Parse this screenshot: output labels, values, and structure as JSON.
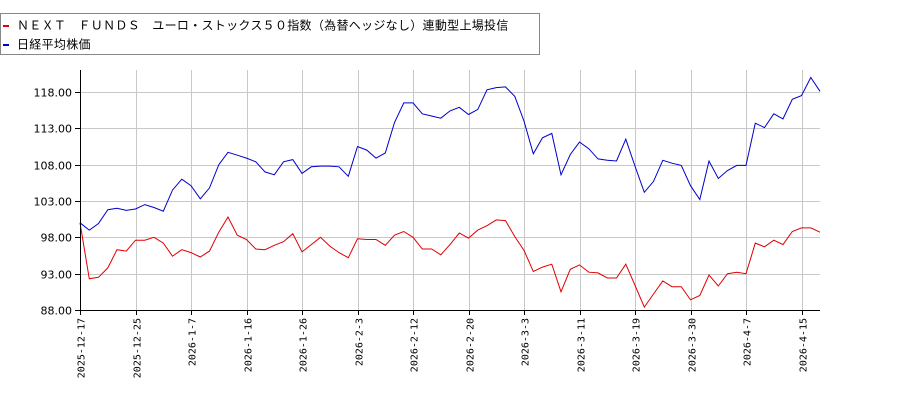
{
  "legend": {
    "items": [
      {
        "label": "ＮＥＸＴ　ＦＵＮＤＳ　ユーロ・ストックス５０指数（為替ヘッジなし）連動型上場投信",
        "color": "#e00000"
      },
      {
        "label": "日経平均株価",
        "color": "#0000cc"
      }
    ]
  },
  "chart_data": {
    "type": "line",
    "title": "",
    "xlabel": "",
    "ylabel": "",
    "ylim": [
      88.0,
      120.0
    ],
    "yticks": [
      "88.00",
      "93.00",
      "98.00",
      "103.00",
      "108.00",
      "113.00",
      "118.00"
    ],
    "ytick_values": [
      88,
      93,
      98,
      103,
      108,
      113,
      118
    ],
    "xtick_labels": [
      "2025-12-17",
      "2025-12-25",
      "2026-1-7",
      "2026-1-16",
      "2026-1-26",
      "2026-2-3",
      "2026-2-12",
      "2026-2-20",
      "2026-3-3",
      "2026-3-11",
      "2026-3-19",
      "2026-3-30",
      "2026-4-7",
      "2026-4-15"
    ],
    "xtick_indices": [
      0,
      6,
      12,
      18,
      24,
      30,
      36,
      42,
      48,
      54,
      60,
      66,
      72,
      78
    ],
    "grid": true,
    "legend_position": "top-left",
    "n_points": 81,
    "series": [
      {
        "name": "ＮＥＸＴ　ＦＵＮＤＳ　ユーロ・ストックス５０指数（為替ヘッジなし）連動型上場投信",
        "color": "#e00000",
        "values": [
          100.0,
          92.3,
          92.5,
          93.8,
          96.3,
          96.1,
          97.6,
          97.6,
          98.0,
          97.2,
          95.4,
          96.3,
          95.9,
          95.3,
          96.1,
          98.7,
          100.8,
          98.3,
          97.7,
          96.4,
          96.3,
          96.9,
          97.4,
          98.5,
          96.0,
          97.0,
          98.0,
          96.8,
          95.9,
          95.2,
          97.8,
          97.7,
          97.7,
          96.9,
          98.3,
          98.8,
          98.0,
          96.4,
          96.4,
          95.6,
          97.0,
          98.6,
          97.9,
          99.0,
          99.6,
          100.4,
          100.3,
          98.1,
          96.2,
          93.3,
          93.9,
          94.3,
          90.5,
          93.6,
          94.2,
          93.2,
          93.1,
          92.4,
          92.4,
          94.3,
          91.4,
          88.4,
          90.2,
          92.0,
          91.2,
          91.2,
          89.4,
          90.0,
          92.8,
          91.3,
          93.0,
          93.2,
          93.0,
          97.2,
          96.7,
          97.6,
          97.0,
          98.8,
          99.3,
          99.3,
          98.7
        ]
      },
      {
        "name": "日経平均株価",
        "color": "#0000cc",
        "values": [
          100.0,
          99.0,
          99.9,
          101.8,
          102.0,
          101.7,
          101.9,
          102.5,
          102.1,
          101.6,
          104.5,
          106.0,
          105.1,
          103.3,
          104.8,
          108.0,
          109.7,
          109.3,
          108.9,
          108.4,
          107.0,
          106.6,
          108.4,
          108.7,
          106.8,
          107.7,
          107.8,
          107.8,
          107.7,
          106.4,
          110.5,
          110.0,
          108.9,
          109.6,
          113.8,
          116.5,
          116.5,
          115.0,
          114.7,
          114.4,
          115.4,
          115.9,
          114.9,
          115.6,
          118.3,
          118.6,
          118.7,
          117.4,
          114.0,
          109.5,
          111.7,
          112.3,
          106.6,
          109.4,
          111.1,
          110.2,
          108.8,
          108.6,
          108.5,
          111.5,
          107.8,
          104.2,
          105.7,
          108.6,
          108.2,
          107.9,
          105.1,
          103.2,
          108.5,
          106.1,
          107.2,
          107.9,
          107.9,
          113.7,
          113.1,
          115.0,
          114.3,
          117.0,
          117.5,
          120.0,
          118.1
        ]
      }
    ]
  }
}
